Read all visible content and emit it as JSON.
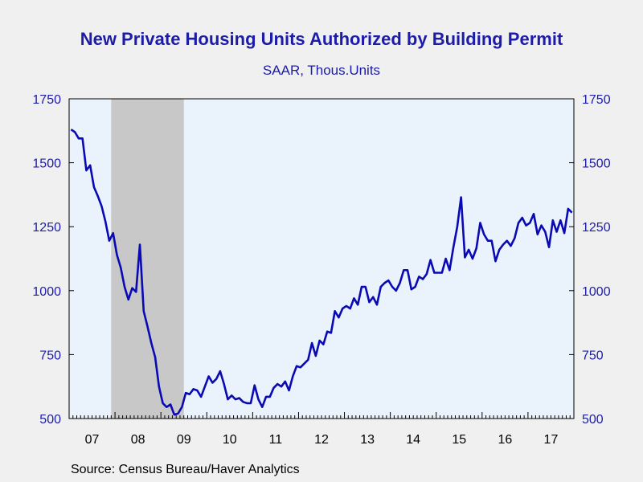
{
  "chart_data": {
    "type": "line",
    "title": "New Private Housing Units Authorized by Building Permit",
    "subtitle": "SAAR, Thous.Units",
    "ylim": [
      500,
      1750
    ],
    "yticks": [
      "500",
      "750",
      "1000",
      "1250",
      "1500",
      "1750"
    ],
    "ytick_values": [
      500,
      750,
      1000,
      1250,
      1500,
      1750
    ],
    "xlim": [
      "2007-01",
      "2017-12"
    ],
    "x_tick_labels": [
      "07",
      "08",
      "09",
      "10",
      "11",
      "12",
      "13",
      "14",
      "15",
      "16",
      "17"
    ],
    "shaded_region": {
      "start": "2007-12",
      "end": "2009-06",
      "color": "#c8c8c8"
    },
    "grid": false,
    "colors": {
      "line": "#0a0ab4",
      "plot_bg": "#eaf2fc",
      "axis_text": "#1c1ca8",
      "shade": "#c8c8c8"
    },
    "series": [
      {
        "x": [
          "2007-01",
          "2007-02",
          "2007-03",
          "2007-04",
          "2007-05",
          "2007-06",
          "2007-07",
          "2007-08",
          "2007-09",
          "2007-10",
          "2007-11",
          "2007-12",
          "2008-01",
          "2008-02",
          "2008-03",
          "2008-04",
          "2008-05",
          "2008-06",
          "2008-07",
          "2008-08",
          "2008-09",
          "2008-10",
          "2008-11",
          "2008-12",
          "2009-01",
          "2009-02",
          "2009-03",
          "2009-04",
          "2009-05",
          "2009-06",
          "2009-07",
          "2009-08",
          "2009-09",
          "2009-10",
          "2009-11",
          "2009-12",
          "2010-01",
          "2010-02",
          "2010-03",
          "2010-04",
          "2010-05",
          "2010-06",
          "2010-07",
          "2010-08",
          "2010-09",
          "2010-10",
          "2010-11",
          "2010-12",
          "2011-01",
          "2011-02",
          "2011-03",
          "2011-04",
          "2011-05",
          "2011-06",
          "2011-07",
          "2011-08",
          "2011-09",
          "2011-10",
          "2011-11",
          "2011-12",
          "2012-01",
          "2012-02",
          "2012-03",
          "2012-04",
          "2012-05",
          "2012-06",
          "2012-07",
          "2012-08",
          "2012-09",
          "2012-10",
          "2012-11",
          "2012-12",
          "2013-01",
          "2013-02",
          "2013-03",
          "2013-04",
          "2013-05",
          "2013-06",
          "2013-07",
          "2013-08",
          "2013-09",
          "2013-10",
          "2013-11",
          "2013-12",
          "2014-01",
          "2014-02",
          "2014-03",
          "2014-04",
          "2014-05",
          "2014-06",
          "2014-07",
          "2014-08",
          "2014-09",
          "2014-10",
          "2014-11",
          "2014-12",
          "2015-01",
          "2015-02",
          "2015-03",
          "2015-04",
          "2015-05",
          "2015-06",
          "2015-07",
          "2015-08",
          "2015-09",
          "2015-10",
          "2015-11",
          "2015-12",
          "2016-01",
          "2016-02",
          "2016-03",
          "2016-04",
          "2016-05",
          "2016-06",
          "2016-07",
          "2016-08",
          "2016-09",
          "2016-10",
          "2016-11",
          "2016-12",
          "2017-01",
          "2017-02",
          "2017-03",
          "2017-04",
          "2017-05",
          "2017-06",
          "2017-07",
          "2017-08",
          "2017-09",
          "2017-10",
          "2017-11",
          "2017-12"
        ],
        "values": [
          1630,
          1620,
          1595,
          1595,
          1470,
          1490,
          1405,
          1370,
          1330,
          1270,
          1195,
          1225,
          1140,
          1090,
          1015,
          965,
          1010,
          995,
          1180,
          920,
          860,
          795,
          740,
          625,
          560,
          545,
          555,
          515,
          520,
          545,
          600,
          595,
          615,
          610,
          585,
          625,
          665,
          640,
          655,
          685,
          635,
          575,
          590,
          575,
          580,
          565,
          560,
          560,
          630,
          575,
          545,
          585,
          585,
          620,
          635,
          625,
          645,
          610,
          665,
          705,
          700,
          715,
          730,
          795,
          745,
          805,
          790,
          840,
          835,
          920,
          895,
          930,
          940,
          930,
          970,
          945,
          1015,
          1015,
          955,
          975,
          945,
          1015,
          1030,
          1040,
          1015,
          1000,
          1030,
          1080,
          1080,
          1005,
          1015,
          1055,
          1045,
          1065,
          1120,
          1070,
          1070,
          1070,
          1125,
          1080,
          1170,
          1250,
          1365,
          1130,
          1160,
          1125,
          1165,
          1265,
          1220,
          1195,
          1195,
          1115,
          1160,
          1180,
          1195,
          1175,
          1205,
          1265,
          1285,
          1255,
          1265,
          1300,
          1220,
          1255,
          1230,
          1170,
          1275,
          1230,
          1275,
          1225,
          1320,
          1305
        ]
      }
    ]
  },
  "source": "Source:  Census Bureau/Haver Analytics"
}
